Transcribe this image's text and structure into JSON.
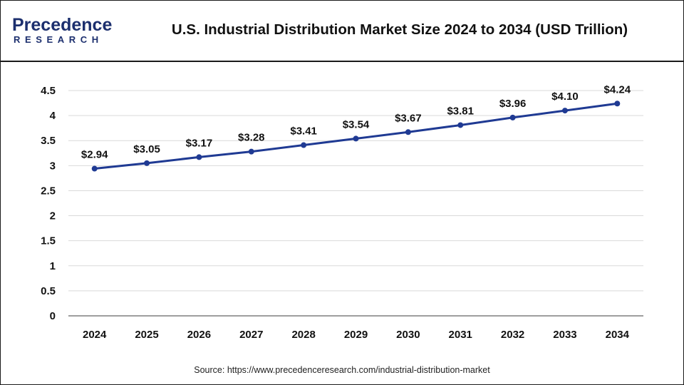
{
  "brand": {
    "name": "Precedence",
    "sub": "RESEARCH"
  },
  "title": "U.S. Industrial Distribution Market Size 2024 to 2034 (USD Trillion)",
  "source": "Source: https://www.precedenceresearch.com/industrial-distribution-market",
  "colors": {
    "line": "#1f3a93",
    "marker": "#1f3a93",
    "grid": "#d9d9d9",
    "axis": "#7f7f7f",
    "text": "#111111",
    "brand": "#1c2f6e"
  },
  "chart_data": {
    "type": "line",
    "title": "U.S. Industrial Distribution Market Size 2024 to 2034 (USD Trillion)",
    "xlabel": "",
    "ylabel": "",
    "categories": [
      "2024",
      "2025",
      "2026",
      "2027",
      "2028",
      "2029",
      "2030",
      "2031",
      "2032",
      "2033",
      "2034"
    ],
    "series": [
      {
        "name": "U.S. Industrial Distribution Market Size",
        "values": [
          2.94,
          3.05,
          3.17,
          3.28,
          3.41,
          3.54,
          3.67,
          3.81,
          3.96,
          4.1,
          4.24
        ]
      }
    ],
    "data_labels": [
      "$2.94",
      "$3.05",
      "$3.17",
      "$3.28",
      "$3.41",
      "$3.54",
      "$3.67",
      "$3.81",
      "$3.96",
      "$4.10",
      "$4.24"
    ],
    "yticks": [
      "0",
      "0.5",
      "1",
      "1.5",
      "2",
      "2.5",
      "3",
      "3.5",
      "4",
      "4.5"
    ],
    "ylim": [
      0,
      4.5
    ],
    "grid": true,
    "legend": "none"
  }
}
